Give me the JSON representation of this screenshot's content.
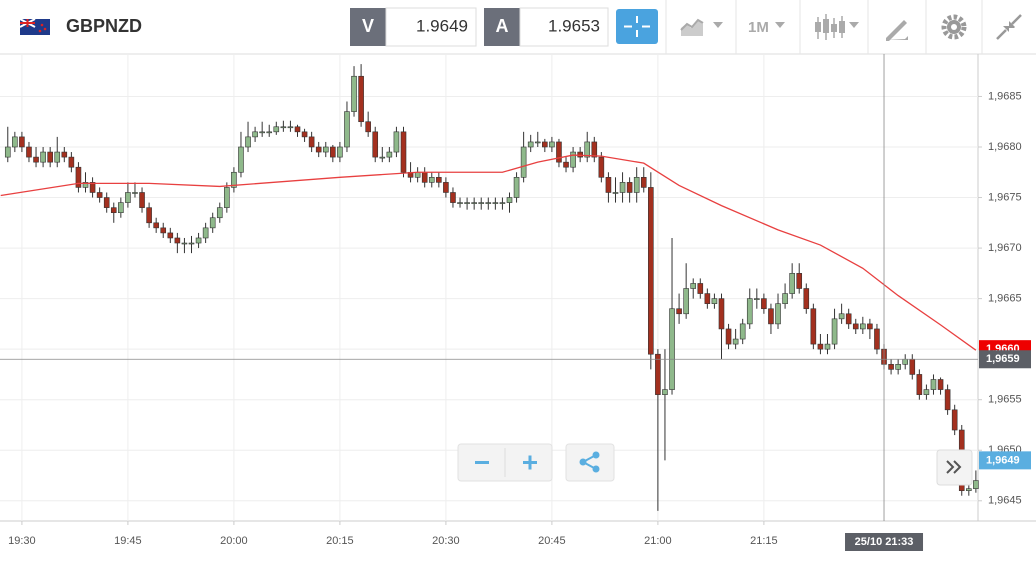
{
  "toolbar": {
    "instrument": "GBPNZD",
    "bid": {
      "label": "V",
      "price": "1.9649"
    },
    "ask": {
      "label": "A",
      "price": "1.9653"
    },
    "timeframe": "1M"
  },
  "chart_data": {
    "type": "candlestick",
    "up_color": "#8fb98b",
    "down_color": "#a3301f",
    "x_start": 1168,
    "ohlc": [
      [
        1.9679,
        1.9682,
        1.96785,
        1.968
      ],
      [
        1.968,
        1.96815,
        1.96795,
        1.9681
      ],
      [
        1.9681,
        1.96815,
        1.96795,
        1.968
      ],
      [
        1.968,
        1.96805,
        1.96785,
        1.9679
      ],
      [
        1.9679,
        1.968,
        1.9678,
        1.96785
      ],
      [
        1.96785,
        1.968,
        1.9678,
        1.96795
      ],
      [
        1.96795,
        1.968,
        1.9678,
        1.96785
      ],
      [
        1.96785,
        1.9681,
        1.9678,
        1.96795
      ],
      [
        1.96795,
        1.968,
        1.96785,
        1.9679
      ],
      [
        1.9679,
        1.96795,
        1.96775,
        1.9678
      ],
      [
        1.9678,
        1.96785,
        1.96755,
        1.9676
      ],
      [
        1.9676,
        1.96775,
        1.96755,
        1.96765
      ],
      [
        1.96765,
        1.9677,
        1.9675,
        1.96755
      ],
      [
        1.96755,
        1.9676,
        1.96745,
        1.9675
      ],
      [
        1.9675,
        1.96755,
        1.96735,
        1.9674
      ],
      [
        1.9674,
        1.96745,
        1.96725,
        1.96735
      ],
      [
        1.96735,
        1.9675,
        1.9673,
        1.96745
      ],
      [
        1.96745,
        1.96765,
        1.9674,
        1.96755
      ],
      [
        1.96755,
        1.96765,
        1.9675,
        1.96755
      ],
      [
        1.96755,
        1.9676,
        1.96735,
        1.9674
      ],
      [
        1.9674,
        1.96745,
        1.9672,
        1.96725
      ],
      [
        1.96725,
        1.9673,
        1.96715,
        1.9672
      ],
      [
        1.9672,
        1.96725,
        1.9671,
        1.96715
      ],
      [
        1.96715,
        1.9672,
        1.96705,
        1.9671
      ],
      [
        1.9671,
        1.96715,
        1.96695,
        1.96705
      ],
      [
        1.96705,
        1.9671,
        1.96695,
        1.96705
      ],
      [
        1.96705,
        1.96712,
        1.96695,
        1.96705
      ],
      [
        1.96705,
        1.96715,
        1.967,
        1.9671
      ],
      [
        1.9671,
        1.96725,
        1.96705,
        1.9672
      ],
      [
        1.9672,
        1.96735,
        1.96715,
        1.9673
      ],
      [
        1.9673,
        1.96745,
        1.96725,
        1.9674
      ],
      [
        1.9674,
        1.96765,
        1.96735,
        1.9676
      ],
      [
        1.9676,
        1.9678,
        1.96755,
        1.96775
      ],
      [
        1.96775,
        1.96815,
        1.9677,
        1.968
      ],
      [
        1.968,
        1.96825,
        1.96795,
        1.9681
      ],
      [
        1.9681,
        1.9682,
        1.96805,
        1.96815
      ],
      [
        1.96815,
        1.96825,
        1.9681,
        1.96815
      ],
      [
        1.96815,
        1.96822,
        1.9681,
        1.96815
      ],
      [
        1.96815,
        1.96825,
        1.96812,
        1.9682
      ],
      [
        1.9682,
        1.96826,
        1.96815,
        1.9682
      ],
      [
        1.9682,
        1.96826,
        1.96815,
        1.9682
      ],
      [
        1.9682,
        1.96822,
        1.9681,
        1.96815
      ],
      [
        1.96815,
        1.96818,
        1.96805,
        1.9681
      ],
      [
        1.9681,
        1.96815,
        1.96795,
        1.968
      ],
      [
        1.968,
        1.96805,
        1.9679,
        1.96795
      ],
      [
        1.96795,
        1.96805,
        1.9679,
        1.968
      ],
      [
        1.968,
        1.96802,
        1.96785,
        1.9679
      ],
      [
        1.9679,
        1.96805,
        1.96785,
        1.968
      ],
      [
        1.968,
        1.96845,
        1.96795,
        1.96835
      ],
      [
        1.96835,
        1.9688,
        1.9683,
        1.9687
      ],
      [
        1.9687,
        1.96882,
        1.9682,
        1.96825
      ],
      [
        1.96825,
        1.96835,
        1.9681,
        1.96815
      ],
      [
        1.96815,
        1.9682,
        1.96785,
        1.9679
      ],
      [
        1.9679,
        1.968,
        1.96785,
        1.9679
      ],
      [
        1.9679,
        1.968,
        1.96785,
        1.96795
      ],
      [
        1.96795,
        1.9682,
        1.9679,
        1.96815
      ],
      [
        1.96815,
        1.9682,
        1.9677,
        1.96775
      ],
      [
        1.96775,
        1.96785,
        1.96765,
        1.9677
      ],
      [
        1.9677,
        1.9678,
        1.96765,
        1.96775
      ],
      [
        1.96775,
        1.9678,
        1.9676,
        1.96765
      ],
      [
        1.96765,
        1.96775,
        1.9676,
        1.9677
      ],
      [
        1.9677,
        1.96775,
        1.9676,
        1.96765
      ],
      [
        1.96765,
        1.9677,
        1.9675,
        1.96755
      ],
      [
        1.96755,
        1.9676,
        1.9674,
        1.96745
      ],
      [
        1.96745,
        1.9675,
        1.9674,
        1.96745
      ],
      [
        1.96745,
        1.9675,
        1.96738,
        1.96745
      ],
      [
        1.96745,
        1.9675,
        1.96738,
        1.96745
      ],
      [
        1.96745,
        1.9675,
        1.96738,
        1.96745
      ],
      [
        1.96745,
        1.9675,
        1.96738,
        1.96745
      ],
      [
        1.96745,
        1.9675,
        1.96738,
        1.96745
      ],
      [
        1.96745,
        1.9675,
        1.96738,
        1.96745
      ],
      [
        1.96745,
        1.96755,
        1.96735,
        1.9675
      ],
      [
        1.9675,
        1.96775,
        1.96745,
        1.9677
      ],
      [
        1.9677,
        1.96815,
        1.96765,
        1.968
      ],
      [
        1.968,
        1.96812,
        1.96795,
        1.96805
      ],
      [
        1.96805,
        1.96815,
        1.968,
        1.96805
      ],
      [
        1.96805,
        1.96808,
        1.96795,
        1.968
      ],
      [
        1.968,
        1.9681,
        1.96795,
        1.96805
      ],
      [
        1.96805,
        1.96808,
        1.9678,
        1.96785
      ],
      [
        1.96785,
        1.9679,
        1.96775,
        1.9678
      ],
      [
        1.9678,
        1.968,
        1.96775,
        1.96795
      ],
      [
        1.96795,
        1.968,
        1.96785,
        1.9679
      ],
      [
        1.9679,
        1.96815,
        1.96785,
        1.96805
      ],
      [
        1.96805,
        1.9681,
        1.96785,
        1.9679
      ],
      [
        1.9679,
        1.96795,
        1.96765,
        1.9677
      ],
      [
        1.9677,
        1.96775,
        1.96745,
        1.96755
      ],
      [
        1.96755,
        1.9677,
        1.96745,
        1.96755
      ],
      [
        1.96755,
        1.96775,
        1.96745,
        1.96765
      ],
      [
        1.96765,
        1.9677,
        1.96745,
        1.96755
      ],
      [
        1.96755,
        1.9678,
        1.96745,
        1.9677
      ],
      [
        1.9677,
        1.9678,
        1.96755,
        1.9676
      ],
      [
        1.9676,
        1.96775,
        1.9658,
        1.96595
      ],
      [
        1.96595,
        1.966,
        1.9644,
        1.96555
      ],
      [
        1.96555,
        1.966,
        1.9649,
        1.9656
      ],
      [
        1.9656,
        1.9671,
        1.96555,
        1.9664
      ],
      [
        1.9664,
        1.96655,
        1.96625,
        1.96635
      ],
      [
        1.96635,
        1.96685,
        1.9663,
        1.9666
      ],
      [
        1.9666,
        1.9667,
        1.9665,
        1.96665
      ],
      [
        1.96665,
        1.9667,
        1.9665,
        1.96655
      ],
      [
        1.96655,
        1.9666,
        1.9664,
        1.96645
      ],
      [
        1.96645,
        1.96655,
        1.9664,
        1.9665
      ],
      [
        1.9665,
        1.96655,
        1.9659,
        1.9662
      ],
      [
        1.9662,
        1.96625,
        1.966,
        1.96605
      ],
      [
        1.96605,
        1.9662,
        1.966,
        1.9661
      ],
      [
        1.9661,
        1.9663,
        1.96605,
        1.96625
      ],
      [
        1.96625,
        1.9666,
        1.9662,
        1.9665
      ],
      [
        1.9665,
        1.9666,
        1.9664,
        1.9665
      ],
      [
        1.9665,
        1.96655,
        1.96635,
        1.9664
      ],
      [
        1.9664,
        1.96645,
        1.96615,
        1.96625
      ],
      [
        1.96625,
        1.96655,
        1.9662,
        1.96645
      ],
      [
        1.96645,
        1.96665,
        1.9664,
        1.96655
      ],
      [
        1.96655,
        1.96685,
        1.9665,
        1.96675
      ],
      [
        1.96675,
        1.96685,
        1.96655,
        1.9666
      ],
      [
        1.9666,
        1.96665,
        1.96635,
        1.9664
      ],
      [
        1.9664,
        1.96645,
        1.966,
        1.96605
      ],
      [
        1.96605,
        1.96615,
        1.96595,
        1.966
      ],
      [
        1.966,
        1.96615,
        1.96595,
        1.96605
      ],
      [
        1.96605,
        1.9664,
        1.966,
        1.9663
      ],
      [
        1.9663,
        1.96645,
        1.96625,
        1.96635
      ],
      [
        1.96635,
        1.9664,
        1.9662,
        1.96625
      ],
      [
        1.96625,
        1.9663,
        1.96615,
        1.9662
      ],
      [
        1.9662,
        1.96632,
        1.96615,
        1.96625
      ],
      [
        1.96625,
        1.9663,
        1.9661,
        1.9662
      ],
      [
        1.9662,
        1.96625,
        1.96595,
        1.966
      ],
      [
        1.966,
        1.96605,
        1.9658,
        1.96585
      ],
      [
        1.96585,
        1.9659,
        1.96575,
        1.9658
      ],
      [
        1.9658,
        1.9659,
        1.96575,
        1.96585
      ],
      [
        1.96585,
        1.96595,
        1.9658,
        1.9659
      ],
      [
        1.9659,
        1.96595,
        1.9657,
        1.96575
      ],
      [
        1.96575,
        1.9658,
        1.9655,
        1.96555
      ],
      [
        1.96555,
        1.96565,
        1.9655,
        1.9656
      ],
      [
        1.9656,
        1.96575,
        1.96555,
        1.9657
      ],
      [
        1.9657,
        1.96572,
        1.96555,
        1.9656
      ],
      [
        1.9656,
        1.96565,
        1.96535,
        1.9654
      ],
      [
        1.9654,
        1.96545,
        1.96515,
        1.9652
      ],
      [
        1.9652,
        1.96525,
        1.96455,
        1.9646
      ],
      [
        1.9646,
        1.9647,
        1.96455,
        1.96462
      ],
      [
        1.96462,
        1.9648,
        1.96458,
        1.9647
      ]
    ],
    "ma": {
      "color": "#e84040",
      "x": [
        1167,
        1178,
        1188,
        1198,
        1215,
        1226,
        1238,
        1243,
        1248,
        1252,
        1258,
        1263,
        1269,
        1277,
        1283,
        1289,
        1294,
        1300,
        1305
      ],
      "values": [
        1.96752,
        1.96764,
        1.96764,
        1.96761,
        1.9677,
        1.96775,
        1.96775,
        1.96785,
        1.96792,
        1.96791,
        1.96784,
        1.96762,
        1.96742,
        1.96718,
        1.96703,
        1.9668,
        1.96653,
        1.96624,
        1.96599
      ]
    },
    "xlim": [
      1166.9,
      1305.3
    ],
    "xticks": [
      {
        "value": 1170,
        "label": "19:30"
      },
      {
        "value": 1185,
        "label": "19:45"
      },
      {
        "value": 1200,
        "label": "20:00"
      },
      {
        "value": 1215,
        "label": "20:15"
      },
      {
        "value": 1230,
        "label": "20:30"
      },
      {
        "value": 1245,
        "label": "20:45"
      },
      {
        "value": 1260,
        "label": "21:00"
      },
      {
        "value": 1275,
        "label": "21:15"
      }
    ],
    "ylim": [
      1.9643,
      1.96892
    ],
    "yticks": [
      {
        "value": 1.9645,
        "label": "1,9645"
      },
      {
        "value": 1.965,
        "label": "1,9650"
      },
      {
        "value": 1.9655,
        "label": "1,9655"
      },
      {
        "value": 1.966,
        "label": "1,9660"
      },
      {
        "value": 1.9665,
        "label": "1,9665"
      },
      {
        "value": 1.967,
        "label": "1,9670"
      },
      {
        "value": 1.9675,
        "label": "1,9675"
      },
      {
        "value": 1.968,
        "label": "1,9680"
      },
      {
        "value": 1.9685,
        "label": "1,9685"
      }
    ],
    "grid": true,
    "price_markers": [
      {
        "value": 1.966,
        "label": "1,9660",
        "color": "#ee0000"
      },
      {
        "value": 1.9649,
        "label": "1,9649",
        "color": "#5aaee0"
      }
    ],
    "cursor": {
      "x": {
        "value": 1292,
        "label": "25/10 21:33"
      },
      "y": {
        "value": 1.9659,
        "label": "1,9659"
      },
      "color": "#5c5f66"
    }
  }
}
